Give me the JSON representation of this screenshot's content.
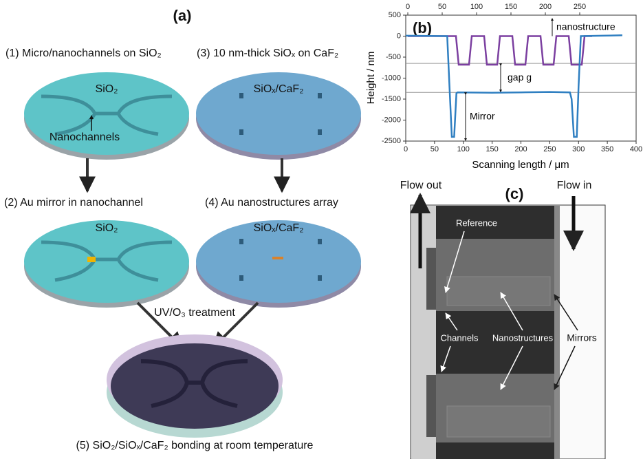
{
  "panel_a": {
    "label": "(a)",
    "steps": [
      "(1) Micro/nanochannels on SiO₂",
      "(3) 10 nm-thick SiOₓ on CaF₂",
      "(2) Au mirror in nanochannel",
      "(4) Au nanostructures array",
      "(5) SiO₂/SiOₓ/CaF₂ bonding at room temperature"
    ],
    "disk_labels": [
      "SiO₂",
      "SiOₓ/CaF₂",
      "SiO₂",
      "SiOₓ/CaF₂"
    ],
    "nanochannels_label": "Nanochannels",
    "treatment": "UV/O₃ treatment"
  },
  "chart_data": {
    "type": "line",
    "label": "(b)",
    "x_label": "Scanning length / μm",
    "y_label": "Height / nm",
    "xlim": [
      0,
      400
    ],
    "xticks": [
      0,
      50,
      100,
      150,
      200,
      250,
      300,
      350,
      400
    ],
    "x2lim": [
      -3,
      332
    ],
    "x2ticks": [
      0,
      50,
      100,
      150,
      200,
      250
    ],
    "ylim": [
      -2500,
      500
    ],
    "yticks": [
      500,
      0,
      -500,
      -1000,
      -1500,
      -2000,
      -2500
    ],
    "hlines": [
      -650,
      -1340
    ],
    "annotations": [
      "nanostructure",
      "gap g",
      "Mirror"
    ],
    "series": [
      {
        "color": "#7b3fa0",
        "axis": "x2",
        "x": [
          0,
          70,
          74,
          89,
          93,
          111,
          115,
          130,
          134,
          152,
          156,
          171,
          175,
          193,
          197,
          212,
          216,
          234,
          238,
          253,
          257,
          268
        ],
        "values": [
          0,
          0,
          -680,
          -680,
          0,
          0,
          -680,
          -680,
          0,
          0,
          -680,
          -680,
          0,
          0,
          -680,
          -680,
          0,
          0,
          -680,
          -680,
          0,
          0
        ]
      },
      {
        "color": "#2f7fc1",
        "x": [
          0,
          72,
          76,
          80,
          84,
          88,
          90,
          150,
          200,
          250,
          285,
          288,
          292,
          297,
          300,
          304,
          340,
          376
        ],
        "values": [
          10,
          0,
          -1200,
          -2400,
          -2400,
          -1360,
          -1340,
          -1350,
          -1340,
          -1330,
          -1340,
          -1500,
          -2400,
          -2400,
          -1200,
          0,
          10,
          20
        ]
      }
    ]
  },
  "panel_c": {
    "label": "(c)",
    "flow_out": "Flow out",
    "flow_in": "Flow in",
    "labels": [
      "Reference",
      "Channels",
      "Nanostructures",
      "Mirrors"
    ]
  }
}
